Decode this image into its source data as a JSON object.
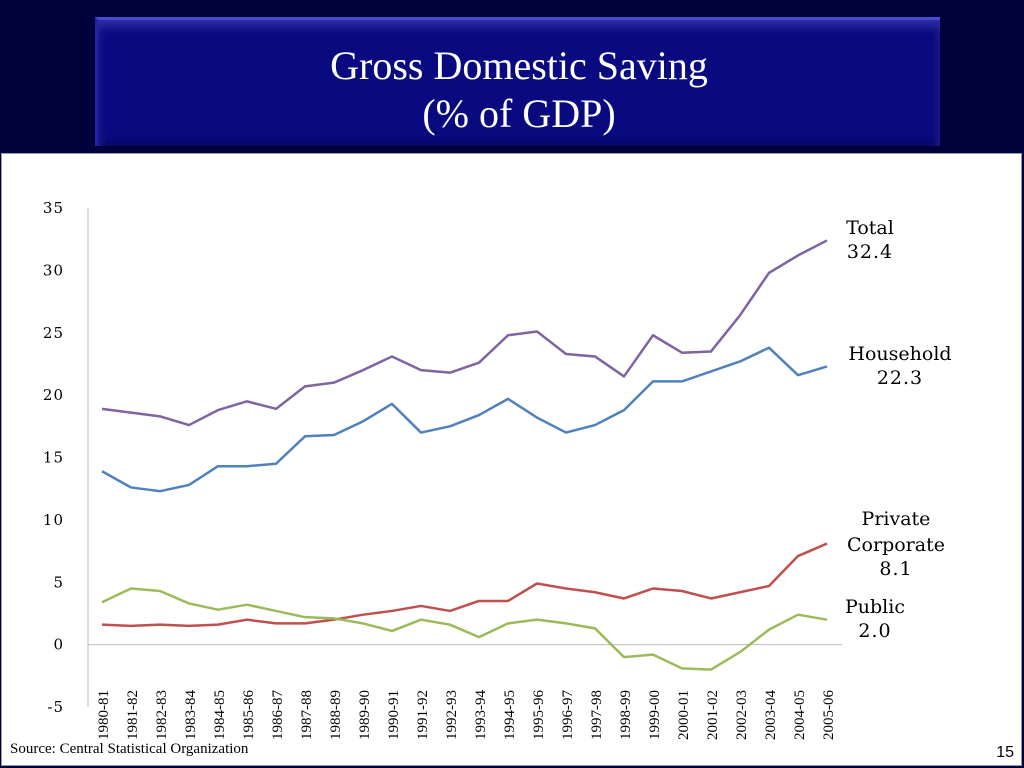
{
  "slide": {
    "title_line1": "Gross Domestic Saving",
    "title_line2": "(% of  GDP)",
    "source": "Source: Central Statistical Organization",
    "page_number": "15"
  },
  "chart_data": {
    "type": "line",
    "title": "Gross Domestic Saving (% of GDP)",
    "xlabel": "",
    "ylabel": "",
    "ylim": [
      -5,
      35
    ],
    "yticks": [
      -5,
      0,
      5,
      10,
      15,
      20,
      25,
      30,
      35
    ],
    "grid": false,
    "categories": [
      "1980-81",
      "1981-82",
      "1982-83",
      "1983-84",
      "1984-85",
      "1985-86",
      "1986-87",
      "1987-88",
      "1988-89",
      "1989-90",
      "1990-91",
      "1991-92",
      "1992-93",
      "1993-94",
      "1994-95",
      "1995-96",
      "1996-97",
      "1997-98",
      "1998-99",
      "1999-00",
      "2000-01",
      "2001-02",
      "2002-03",
      "2003-04",
      "2004-05",
      "2005-06"
    ],
    "series": [
      {
        "name": "Total",
        "end_label": "32.4",
        "color": "#8064a2",
        "values": [
          18.9,
          18.6,
          18.3,
          17.6,
          18.8,
          19.5,
          18.9,
          20.7,
          21.0,
          22.0,
          23.1,
          22.0,
          21.8,
          22.6,
          24.8,
          25.1,
          23.3,
          23.1,
          21.5,
          24.8,
          23.4,
          23.5,
          26.4,
          29.8,
          31.2,
          32.4
        ]
      },
      {
        "name": "Household",
        "end_label": "22.3",
        "color": "#4f81bd",
        "values": [
          13.9,
          12.6,
          12.3,
          12.8,
          14.3,
          14.3,
          14.5,
          16.7,
          16.8,
          17.9,
          19.3,
          17.0,
          17.5,
          18.4,
          19.7,
          18.2,
          17.0,
          17.6,
          18.8,
          21.1,
          21.1,
          21.9,
          22.7,
          23.8,
          21.6,
          22.3
        ]
      },
      {
        "name": "Private Corporate",
        "label_lines": [
          "Private",
          "Corporate"
        ],
        "end_label": "8.1",
        "color": "#c0504d",
        "values": [
          1.6,
          1.5,
          1.6,
          1.5,
          1.6,
          2.0,
          1.7,
          1.7,
          2.0,
          2.4,
          2.7,
          3.1,
          2.7,
          3.5,
          3.5,
          4.9,
          4.5,
          4.2,
          3.7,
          4.5,
          4.3,
          3.7,
          4.2,
          4.7,
          7.1,
          8.1
        ]
      },
      {
        "name": "Public",
        "end_label": "2.0",
        "color": "#9bbb59",
        "values": [
          3.4,
          4.5,
          4.3,
          3.3,
          2.8,
          3.2,
          2.7,
          2.2,
          2.1,
          1.7,
          1.1,
          2.0,
          1.6,
          0.6,
          1.7,
          2.0,
          1.7,
          1.3,
          -1.0,
          -0.8,
          -1.9,
          -2.0,
          -0.6,
          1.2,
          2.4,
          2.0
        ]
      }
    ],
    "legend": "inline-right"
  }
}
